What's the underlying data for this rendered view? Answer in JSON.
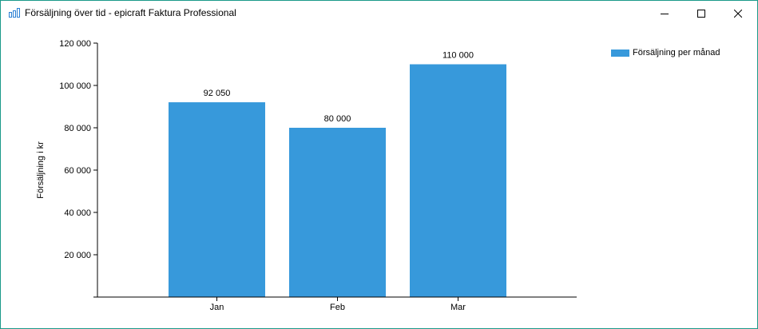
{
  "window": {
    "title": "Försäljning över tid - epicraft Faktura Professional",
    "app_icon": "bar-chart-icon",
    "controls": [
      "minimize-icon",
      "maximize-icon",
      "close-icon"
    ]
  },
  "colors": {
    "bar": "#3799DB",
    "axis": "#000000",
    "border": "#1a9a8a"
  },
  "chart_data": {
    "type": "bar",
    "categories": [
      "Jan",
      "Feb",
      "Mar"
    ],
    "series": [
      {
        "name": "Försäljning per månad",
        "values": [
          92050,
          80000,
          110000
        ]
      }
    ],
    "value_labels": [
      "92 050",
      "80 000",
      "110 000"
    ],
    "yticks": [
      20000,
      40000,
      60000,
      80000,
      100000,
      120000
    ],
    "ytick_labels": [
      "20 000",
      "40 000",
      "60 000",
      "80 000",
      "100 000",
      "120 000"
    ],
    "ylim": [
      0,
      120000
    ],
    "ylabel": "Försäljning i kr",
    "xlabel": "",
    "title": "",
    "grid": false,
    "legend_position": "top-right"
  }
}
